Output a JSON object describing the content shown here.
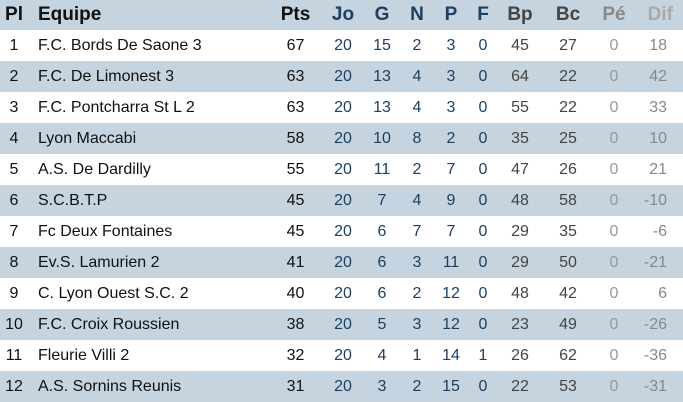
{
  "headers": {
    "pl": "Pl",
    "equipe": "Equipe",
    "pts": "Pts",
    "jo": "Jo",
    "g": "G",
    "n": "N",
    "p": "P",
    "f": "F",
    "bp": "Bp",
    "bc": "Bc",
    "pe": "Pé",
    "dif": "Dif"
  },
  "rows": [
    [
      "1",
      "F.C. Bords De Saone 3",
      "67",
      "20",
      "15",
      "2",
      "3",
      "0",
      "45",
      "27",
      "0",
      "18"
    ],
    [
      "2",
      "F.C. De Limonest 3",
      "63",
      "20",
      "13",
      "4",
      "3",
      "0",
      "64",
      "22",
      "0",
      "42"
    ],
    [
      "3",
      "F.C. Pontcharra St L 2",
      "63",
      "20",
      "13",
      "4",
      "3",
      "0",
      "55",
      "22",
      "0",
      "33"
    ],
    [
      "4",
      "Lyon Maccabi",
      "58",
      "20",
      "10",
      "8",
      "2",
      "0",
      "35",
      "25",
      "0",
      "10"
    ],
    [
      "5",
      "A.S. De Dardilly",
      "55",
      "20",
      "11",
      "2",
      "7",
      "0",
      "47",
      "26",
      "0",
      "21"
    ],
    [
      "6",
      "S.C.B.T.P",
      "45",
      "20",
      "7",
      "4",
      "9",
      "0",
      "48",
      "58",
      "0",
      "-10"
    ],
    [
      "7",
      "Fc Deux Fontaines",
      "45",
      "20",
      "6",
      "7",
      "7",
      "0",
      "29",
      "35",
      "0",
      "-6"
    ],
    [
      "8",
      "Ev.S. Lamurien 2",
      "41",
      "20",
      "6",
      "3",
      "11",
      "0",
      "29",
      "50",
      "0",
      "-21"
    ],
    [
      "9",
      "C. Lyon Ouest S.C. 2",
      "40",
      "20",
      "6",
      "2",
      "12",
      "0",
      "48",
      "42",
      "0",
      "6"
    ],
    [
      "10",
      "F.C. Croix Roussien",
      "38",
      "20",
      "5",
      "3",
      "12",
      "0",
      "23",
      "49",
      "0",
      "-26"
    ],
    [
      "11",
      "Fleurie Villi 2",
      "32",
      "20",
      "4",
      "1",
      "14",
      "1",
      "26",
      "62",
      "0",
      "-36"
    ],
    [
      "12",
      "A.S. Sornins Reunis",
      "31",
      "20",
      "3",
      "2",
      "15",
      "0",
      "22",
      "53",
      "0",
      "-31"
    ]
  ]
}
